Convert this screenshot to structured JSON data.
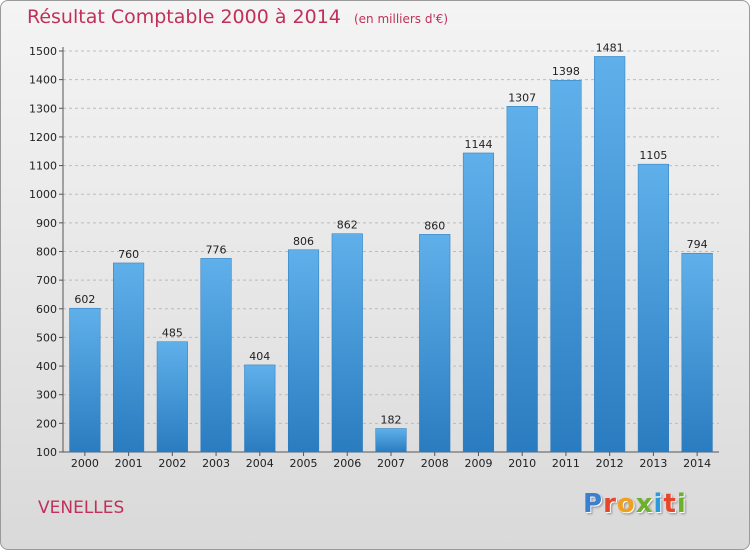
{
  "chart_data": {
    "type": "bar",
    "title": "Résultat Comptable 2000 à 2014",
    "subtitle": "(en milliers d'€)",
    "categories": [
      "2000",
      "2001",
      "2002",
      "2003",
      "2004",
      "2005",
      "2006",
      "2007",
      "2008",
      "2009",
      "2010",
      "2011",
      "2012",
      "2013",
      "2014"
    ],
    "values": [
      602,
      760,
      485,
      776,
      404,
      806,
      862,
      182,
      860,
      1144,
      1307,
      1398,
      1481,
      1105,
      794
    ],
    "ylim": [
      100,
      1500
    ],
    "yticks": [
      100,
      200,
      300,
      400,
      500,
      600,
      700,
      800,
      900,
      1000,
      1100,
      1200,
      1300,
      1400,
      1500
    ],
    "grid": true,
    "legend": "none",
    "bar_color": "#4a9ee0"
  },
  "place_name": "VENELLES",
  "logo": {
    "letters": [
      "P",
      "r",
      "o",
      "x",
      "i",
      "t",
      "i"
    ],
    "colors": [
      "#3a7fd0",
      "#e8462a",
      "#f0a020",
      "#6cb02c",
      "#2a9ad8",
      "#e8462a",
      "#6cb02c"
    ]
  }
}
